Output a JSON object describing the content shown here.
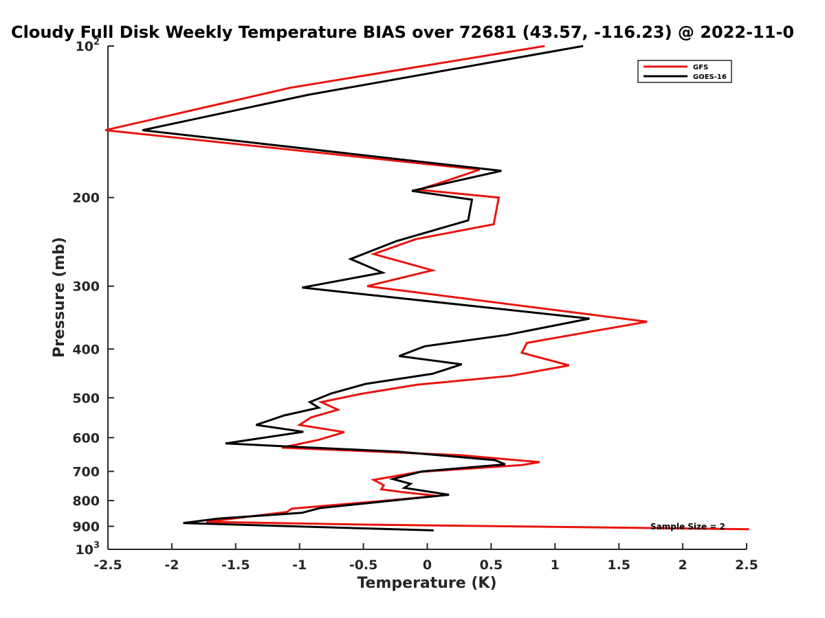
{
  "chart_data": {
    "type": "line",
    "title": "Cloudy Full Disk Weekly Temperature BIAS over 72681 (43.57, -116.23) @ 2022-11-0",
    "xlabel": "Temperature (K)",
    "ylabel": "Pressure (mb)",
    "xlim": [
      -2.5,
      2.5
    ],
    "ylim": [
      100,
      1000
    ],
    "y_scale": "log",
    "y_reversed": true,
    "x_ticks": [
      "-2.5",
      "-2",
      "-1.5",
      "-1",
      "-0.5",
      "0",
      "0.5",
      "1",
      "1.5",
      "2",
      "2.5"
    ],
    "y_ticks": [
      {
        "value": 100,
        "base": "10",
        "exp": "2"
      },
      {
        "value": 200,
        "label": "200"
      },
      {
        "value": 300,
        "label": "300"
      },
      {
        "value": 400,
        "label": "400"
      },
      {
        "value": 500,
        "label": "500"
      },
      {
        "value": 600,
        "label": "600"
      },
      {
        "value": 700,
        "label": "700"
      },
      {
        "value": 800,
        "label": "800"
      },
      {
        "value": 900,
        "label": "900"
      },
      {
        "value": 1000,
        "base": "10",
        "exp": "3"
      }
    ],
    "legend_position": "top-right",
    "grid": false,
    "annotation": "Sample Size = 2",
    "series": [
      {
        "name": "GFS",
        "color": "#e8140f",
        "points": [
          [
            0.92,
            100
          ],
          [
            -1.07,
            121
          ],
          [
            -2.52,
            147
          ],
          [
            0.41,
            176
          ],
          [
            0.13,
            186
          ],
          [
            -0.07,
            193
          ],
          [
            0.56,
            200
          ],
          [
            0.52,
            226
          ],
          [
            -0.09,
            242
          ],
          [
            -0.42,
            259
          ],
          [
            0.04,
            279
          ],
          [
            -0.47,
            300
          ],
          [
            1.72,
            353
          ],
          [
            0.78,
            389
          ],
          [
            0.74,
            407
          ],
          [
            1.11,
            431
          ],
          [
            0.66,
            452
          ],
          [
            -0.08,
            471
          ],
          [
            -0.52,
            491
          ],
          [
            -0.83,
            510
          ],
          [
            -0.7,
            528
          ],
          [
            -0.91,
            547
          ],
          [
            -1.0,
            566
          ],
          [
            -0.65,
            585
          ],
          [
            -0.85,
            606
          ],
          [
            -1.14,
            628
          ],
          [
            0.26,
            650
          ],
          [
            0.88,
            671
          ],
          [
            0.74,
            680
          ],
          [
            -0.07,
            702
          ],
          [
            -0.42,
            728
          ],
          [
            -0.34,
            746
          ],
          [
            -0.36,
            760
          ],
          [
            -0.19,
            770
          ],
          [
            0.08,
            783
          ],
          [
            -0.32,
            800
          ],
          [
            -1.06,
            830
          ],
          [
            -1.1,
            843
          ],
          [
            -1.73,
            882
          ],
          [
            -0.48,
            893
          ],
          [
            2.52,
            912
          ]
        ]
      },
      {
        "name": "GOES-16",
        "color": "#000000",
        "points": [
          [
            1.22,
            100
          ],
          [
            -0.93,
            125
          ],
          [
            -2.23,
            147
          ],
          [
            0.58,
            177
          ],
          [
            -0.12,
            194
          ],
          [
            0.35,
            202
          ],
          [
            0.32,
            222
          ],
          [
            -0.24,
            244
          ],
          [
            -0.6,
            265
          ],
          [
            -0.35,
            282
          ],
          [
            -0.98,
            302
          ],
          [
            1.27,
            348
          ],
          [
            0.62,
            375
          ],
          [
            -0.02,
            395
          ],
          [
            -0.22,
            413
          ],
          [
            0.27,
            429
          ],
          [
            0.04,
            448
          ],
          [
            -0.48,
            469
          ],
          [
            -0.75,
            490
          ],
          [
            -0.92,
            510
          ],
          [
            -0.85,
            523
          ],
          [
            -1.12,
            542
          ],
          [
            -1.34,
            566
          ],
          [
            -0.97,
            584
          ],
          [
            -1.58,
            616
          ],
          [
            -0.22,
            640
          ],
          [
            0.53,
            665
          ],
          [
            0.61,
            678
          ],
          [
            -0.04,
            700
          ],
          [
            -0.27,
            725
          ],
          [
            -0.13,
            741
          ],
          [
            -0.18,
            755
          ],
          [
            0.17,
            779
          ],
          [
            -0.84,
            828
          ],
          [
            -0.98,
            846
          ],
          [
            -1.64,
            869
          ],
          [
            -1.91,
            887
          ],
          [
            0.05,
            917
          ]
        ]
      }
    ]
  }
}
